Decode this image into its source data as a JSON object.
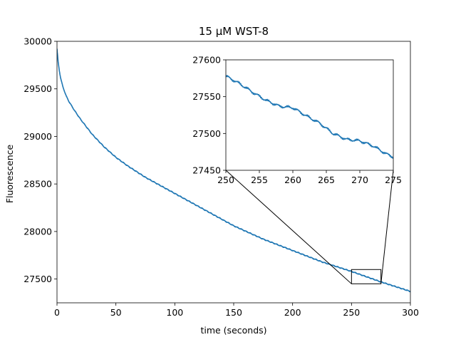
{
  "chart_data": {
    "type": "line",
    "title": "15 μM WST-8",
    "xlabel": "time (seconds)",
    "ylabel": "Fluorescence",
    "xlim": [
      0,
      300
    ],
    "ylim": [
      27250,
      30000
    ],
    "xticks": [
      0,
      50,
      100,
      150,
      200,
      250,
      300
    ],
    "yticks": [
      27500,
      28000,
      28500,
      29000,
      29500,
      30000
    ],
    "grid": false,
    "series": [
      {
        "color": "#1f77b4",
        "x": [
          0,
          1,
          2,
          3,
          5,
          8,
          10,
          15,
          20,
          30,
          40,
          50,
          60,
          75,
          100,
          125,
          150,
          175,
          200,
          225,
          250,
          275,
          300
        ],
        "y": [
          29920,
          29780,
          29690,
          29620,
          29520,
          29420,
          29370,
          29270,
          29180,
          29020,
          28890,
          28780,
          28690,
          28570,
          28400,
          28230,
          28060,
          27920,
          27800,
          27680,
          27580,
          27470,
          27370
        ]
      }
    ],
    "inset": {
      "xlim": [
        250,
        275
      ],
      "ylim": [
        27450,
        27600
      ],
      "xticks": [
        250,
        255,
        260,
        265,
        270,
        275
      ],
      "yticks": [
        27450,
        27500,
        27550,
        27600
      ],
      "x": [
        250,
        252,
        254,
        256,
        258,
        260,
        262,
        264,
        266,
        268,
        270,
        272,
        274,
        275
      ],
      "y": [
        27578,
        27568,
        27556,
        27545,
        27537,
        27535,
        27524,
        27514,
        27500,
        27492,
        27490,
        27483,
        27472,
        27468
      ]
    }
  }
}
